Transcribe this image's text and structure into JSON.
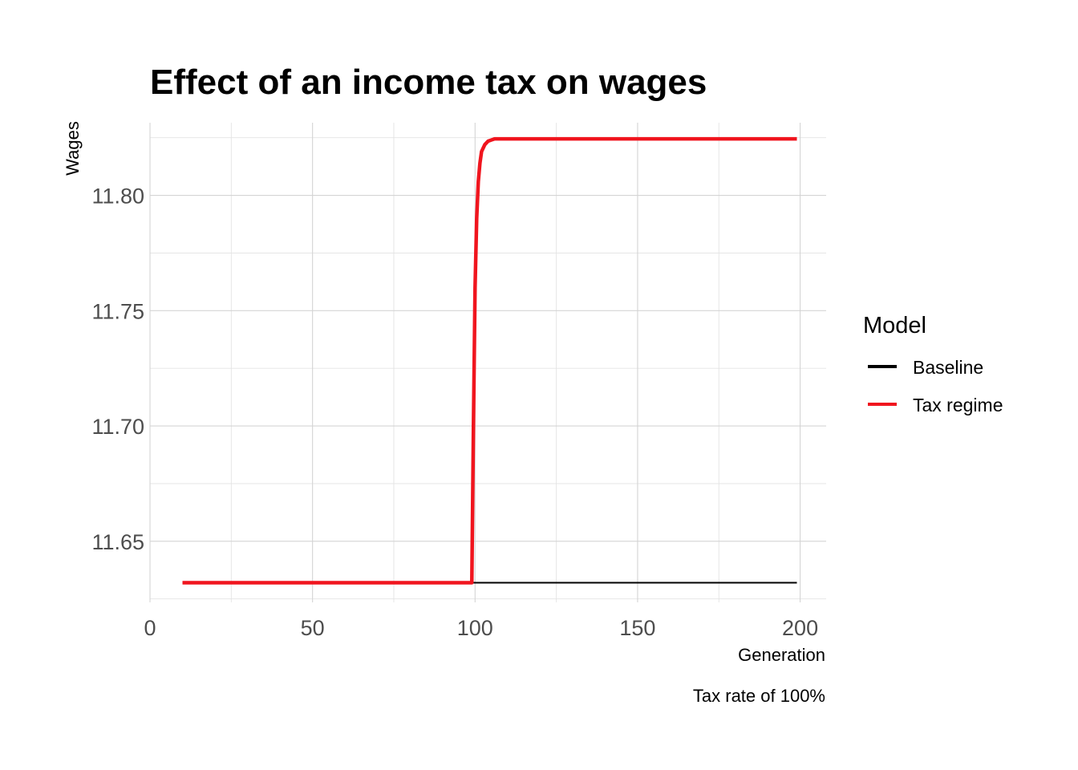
{
  "chart_data": {
    "type": "line",
    "title": "Effect of an income tax on wages",
    "xlabel": "Generation",
    "ylabel": "Wages",
    "caption": "Tax rate of 100%",
    "xlim": [
      0,
      208
    ],
    "ylim": [
      11.6235,
      11.8315
    ],
    "x_ticks": [
      0,
      50,
      100,
      150,
      200
    ],
    "y_ticks": [
      11.65,
      11.7,
      11.75,
      11.8
    ],
    "y_tick_labels": [
      "11.65",
      "11.70",
      "11.75",
      "11.80"
    ],
    "grid": true,
    "legend": {
      "title": "Model",
      "placement": "right",
      "entries": [
        {
          "name": "Baseline",
          "color": "#000000"
        },
        {
          "name": "Tax regime",
          "color": "#f0151e"
        }
      ]
    },
    "series": [
      {
        "name": "Baseline",
        "color": "#000000",
        "x": [
          10,
          199
        ],
        "y": [
          11.632,
          11.632
        ]
      },
      {
        "name": "Tax regime",
        "color": "#f0151e",
        "x": [
          10,
          99,
          99.5,
          100,
          100.5,
          101,
          101.5,
          102,
          103,
          104,
          105,
          106,
          110,
          150,
          199
        ],
        "y": [
          11.632,
          11.632,
          11.7,
          11.76,
          11.79,
          11.806,
          11.814,
          11.819,
          11.822,
          11.8235,
          11.824,
          11.8245,
          11.8245,
          11.8245,
          11.8245
        ]
      }
    ]
  }
}
